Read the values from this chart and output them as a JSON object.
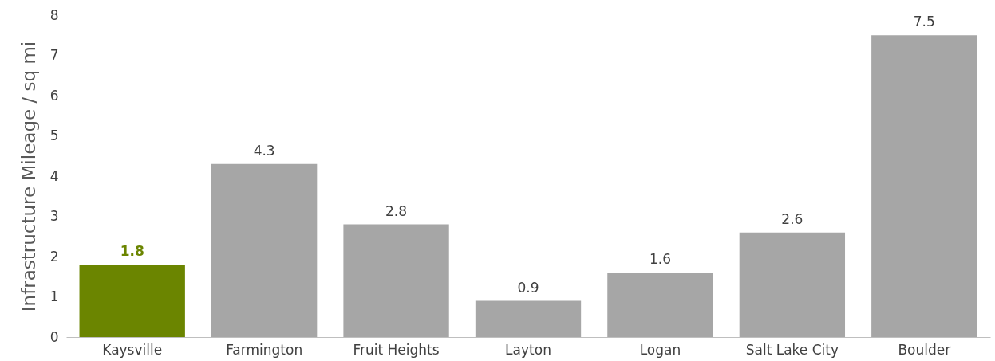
{
  "chart_data": {
    "type": "bar",
    "ylabel": "Infrastructure Mileage / sq mi",
    "categories": [
      "Kaysville",
      "Farmington",
      "Fruit Heights",
      "Layton",
      "Logan",
      "Salt Lake City",
      "Boulder"
    ],
    "values": [
      1.8,
      4.3,
      2.8,
      0.9,
      1.6,
      2.6,
      7.5
    ],
    "colors": [
      "#6b8500",
      "#a6a6a6",
      "#a6a6a6",
      "#a6a6a6",
      "#a6a6a6",
      "#a6a6a6",
      "#a6a6a6"
    ],
    "ylim": [
      0,
      8
    ],
    "yticks": [
      0,
      1,
      2,
      3,
      4,
      5,
      6,
      7,
      8
    ],
    "grid": false,
    "data_labels": true
  }
}
